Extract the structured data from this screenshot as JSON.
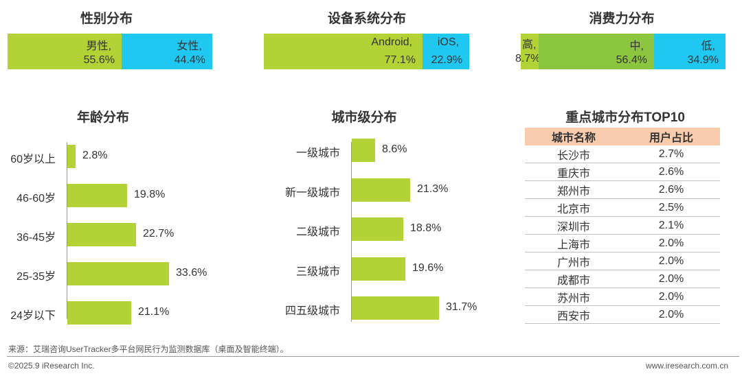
{
  "gender": {
    "title": "性别分布",
    "segments": [
      {
        "label": "男性,",
        "value": "55.6%",
        "pct": 55.6,
        "color": "#b2d235"
      },
      {
        "label": "女性,",
        "value": "44.4%",
        "pct": 44.4,
        "color": "#1fc8f0"
      }
    ]
  },
  "os": {
    "title": "设备系统分布",
    "segments": [
      {
        "label": "Android,",
        "value": "77.1%",
        "pct": 77.1,
        "color": "#b2d235"
      },
      {
        "label": "iOS,",
        "value": "22.9%",
        "pct": 22.9,
        "color": "#1fc8f0"
      }
    ]
  },
  "spend": {
    "title": "消费力分布",
    "segments": [
      {
        "label": "高,",
        "value": "8.7%",
        "pct": 8.7,
        "color": "#b2d235"
      },
      {
        "label": "中,",
        "value": "56.4%",
        "pct": 56.4,
        "color": "#8cc63f"
      },
      {
        "label": "低,",
        "value": "34.9%",
        "pct": 34.9,
        "color": "#1fc8f0"
      }
    ]
  },
  "age": {
    "title": "年龄分布",
    "rows": [
      {
        "label": "60岁以上",
        "value": "2.8%"
      },
      {
        "label": "46-60岁",
        "value": "19.8%"
      },
      {
        "label": "36-45岁",
        "value": "22.7%"
      },
      {
        "label": "25-35岁",
        "value": "33.6%"
      },
      {
        "label": "24岁以下",
        "value": "21.1%"
      }
    ]
  },
  "city_tier": {
    "title": "城市级分布",
    "rows": [
      {
        "label": "一级城市",
        "value": "8.6%"
      },
      {
        "label": "新一级城市",
        "value": "21.3%"
      },
      {
        "label": "二级城市",
        "value": "18.8%"
      },
      {
        "label": "三级城市",
        "value": "19.6%"
      },
      {
        "label": "四五级城市",
        "value": "31.7%"
      }
    ]
  },
  "top10": {
    "title": "重点城市分布TOP10",
    "headers": [
      "城市名称",
      "用户占比"
    ],
    "rows": [
      [
        "长沙市",
        "2.7%"
      ],
      [
        "重庆市",
        "2.6%"
      ],
      [
        "郑州市",
        "2.6%"
      ],
      [
        "北京市",
        "2.5%"
      ],
      [
        "深圳市",
        "2.1%"
      ],
      [
        "上海市",
        "2.0%"
      ],
      [
        "广州市",
        "2.0%"
      ],
      [
        "成都市",
        "2.0%"
      ],
      [
        "苏州市",
        "2.0%"
      ],
      [
        "西安市",
        "2.0%"
      ]
    ]
  },
  "footer": {
    "source": "来源：艾瑞咨询UserTracker多平台网民行为监测数据库（桌面及智能终端）。",
    "copyright": "©2025.9 iResearch Inc.",
    "website": "www.iresearch.com.cn"
  },
  "chart_data": [
    {
      "type": "bar",
      "title": "性别分布",
      "orientation": "stacked-horizontal",
      "categories": [
        "男性",
        "女性"
      ],
      "values": [
        55.6,
        44.4
      ],
      "unit": "%"
    },
    {
      "type": "bar",
      "title": "设备系统分布",
      "orientation": "stacked-horizontal",
      "categories": [
        "Android",
        "iOS"
      ],
      "values": [
        77.1,
        22.9
      ],
      "unit": "%"
    },
    {
      "type": "bar",
      "title": "消费力分布",
      "orientation": "stacked-horizontal",
      "categories": [
        "高",
        "中",
        "低"
      ],
      "values": [
        8.7,
        56.4,
        34.9
      ],
      "unit": "%"
    },
    {
      "type": "bar",
      "title": "年龄分布",
      "orientation": "horizontal",
      "categories": [
        "60岁以上",
        "46-60岁",
        "36-45岁",
        "25-35岁",
        "24岁以下"
      ],
      "values": [
        2.8,
        19.8,
        22.7,
        33.6,
        21.1
      ],
      "unit": "%"
    },
    {
      "type": "bar",
      "title": "城市级分布",
      "orientation": "horizontal",
      "categories": [
        "一级城市",
        "新一级城市",
        "二级城市",
        "三级城市",
        "四五级城市"
      ],
      "values": [
        8.6,
        21.3,
        18.8,
        19.6,
        31.7
      ],
      "unit": "%"
    },
    {
      "type": "table",
      "title": "重点城市分布TOP10",
      "columns": [
        "城市名称",
        "用户占比"
      ],
      "categories": [
        "长沙市",
        "重庆市",
        "郑州市",
        "北京市",
        "深圳市",
        "上海市",
        "广州市",
        "成都市",
        "苏州市",
        "西安市"
      ],
      "values": [
        2.7,
        2.6,
        2.6,
        2.5,
        2.1,
        2.0,
        2.0,
        2.0,
        2.0,
        2.0
      ],
      "unit": "%"
    }
  ]
}
